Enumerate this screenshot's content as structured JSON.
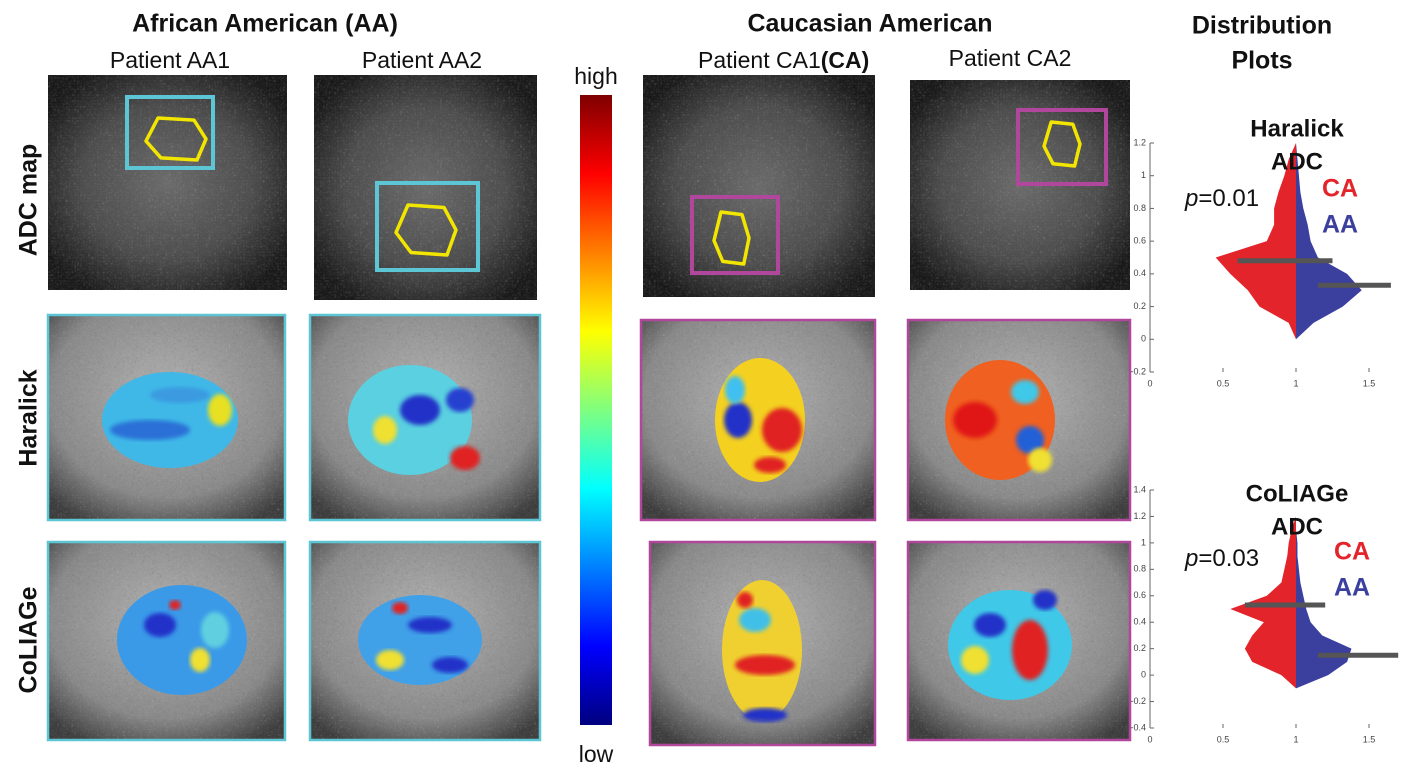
{
  "groups": [
    {
      "title": "African American (AA)"
    },
    {
      "title": "Caucasian American"
    }
  ],
  "distribution_title": [
    "Distribution",
    "Plots"
  ],
  "patients": [
    {
      "label": "Patient AA1"
    },
    {
      "label": "Patient AA2"
    },
    {
      "label": "Patient CA1",
      "tag": "(CA)"
    },
    {
      "label": "Patient CA2"
    }
  ],
  "rows": [
    "ADC map",
    "Haralick",
    "CoLIAGe"
  ],
  "colorbar": {
    "high": "high",
    "low": "low"
  },
  "chart_data": [
    {
      "type": "violin",
      "title": [
        "Haralick",
        "ADC"
      ],
      "p_symbol": "p",
      "p_value": "=0.01",
      "y": [
        0,
        0.1,
        0.2,
        0.3,
        0.4,
        0.5,
        0.6,
        0.7,
        0.8,
        0.9,
        1.0,
        1.1,
        1.2
      ],
      "series": [
        {
          "name": "CA",
          "color": "#e3242b",
          "values": [
            0,
            0.05,
            0.25,
            0.33,
            0.45,
            0.55,
            0.2,
            0.15,
            0.15,
            0.12,
            0.08,
            0.05,
            0
          ]
        },
        {
          "name": "AA",
          "color": "#3b3f9e",
          "values": [
            0,
            0.12,
            0.32,
            0.45,
            0.35,
            0.15,
            0.1,
            0.08,
            0.05,
            0.03,
            0.02,
            0.01,
            0
          ]
        }
      ],
      "bars": [
        {
          "y": 0.48,
          "x": [
            0.6,
            1.25
          ]
        },
        {
          "y": 0.33,
          "x": [
            1.15,
            1.65
          ]
        }
      ],
      "xlim": [
        0,
        1.7
      ],
      "xticks": [
        0,
        0.5,
        1,
        1.5
      ],
      "ylim": [
        -0.2,
        1.2
      ],
      "yticks": [
        -0.2,
        0,
        0.2,
        0.4,
        0.6,
        0.8,
        1,
        1.2
      ]
    },
    {
      "type": "violin",
      "title": [
        "CoLIAGe",
        "ADC"
      ],
      "p_symbol": "p",
      "p_value": "=0.03",
      "y": [
        -0.1,
        0,
        0.1,
        0.2,
        0.3,
        0.4,
        0.5,
        0.6,
        0.7,
        0.8,
        0.9,
        1.0,
        1.1,
        1.2
      ],
      "series": [
        {
          "name": "CA",
          "color": "#e3242b",
          "values": [
            0,
            0.1,
            0.3,
            0.35,
            0.3,
            0.22,
            0.45,
            0.2,
            0.1,
            0.08,
            0.06,
            0.05,
            0.03,
            0
          ]
        },
        {
          "name": "AA",
          "color": "#3b3f9e",
          "values": [
            0,
            0.22,
            0.35,
            0.38,
            0.18,
            0.1,
            0.07,
            0.05,
            0.03,
            0.02,
            0.01,
            0.01,
            0,
            0
          ]
        }
      ],
      "bars": [
        {
          "y": 0.53,
          "x": [
            0.65,
            1.2
          ]
        },
        {
          "y": 0.15,
          "x": [
            1.15,
            1.7
          ]
        }
      ],
      "xlim": [
        0,
        1.7
      ],
      "xticks": [
        0,
        0.5,
        1,
        1.5
      ],
      "ylim": [
        -0.4,
        1.4
      ],
      "yticks": [
        -0.4,
        -0.2,
        0,
        0.2,
        0.4,
        0.6,
        0.8,
        1,
        1.2,
        1.4
      ]
    }
  ]
}
